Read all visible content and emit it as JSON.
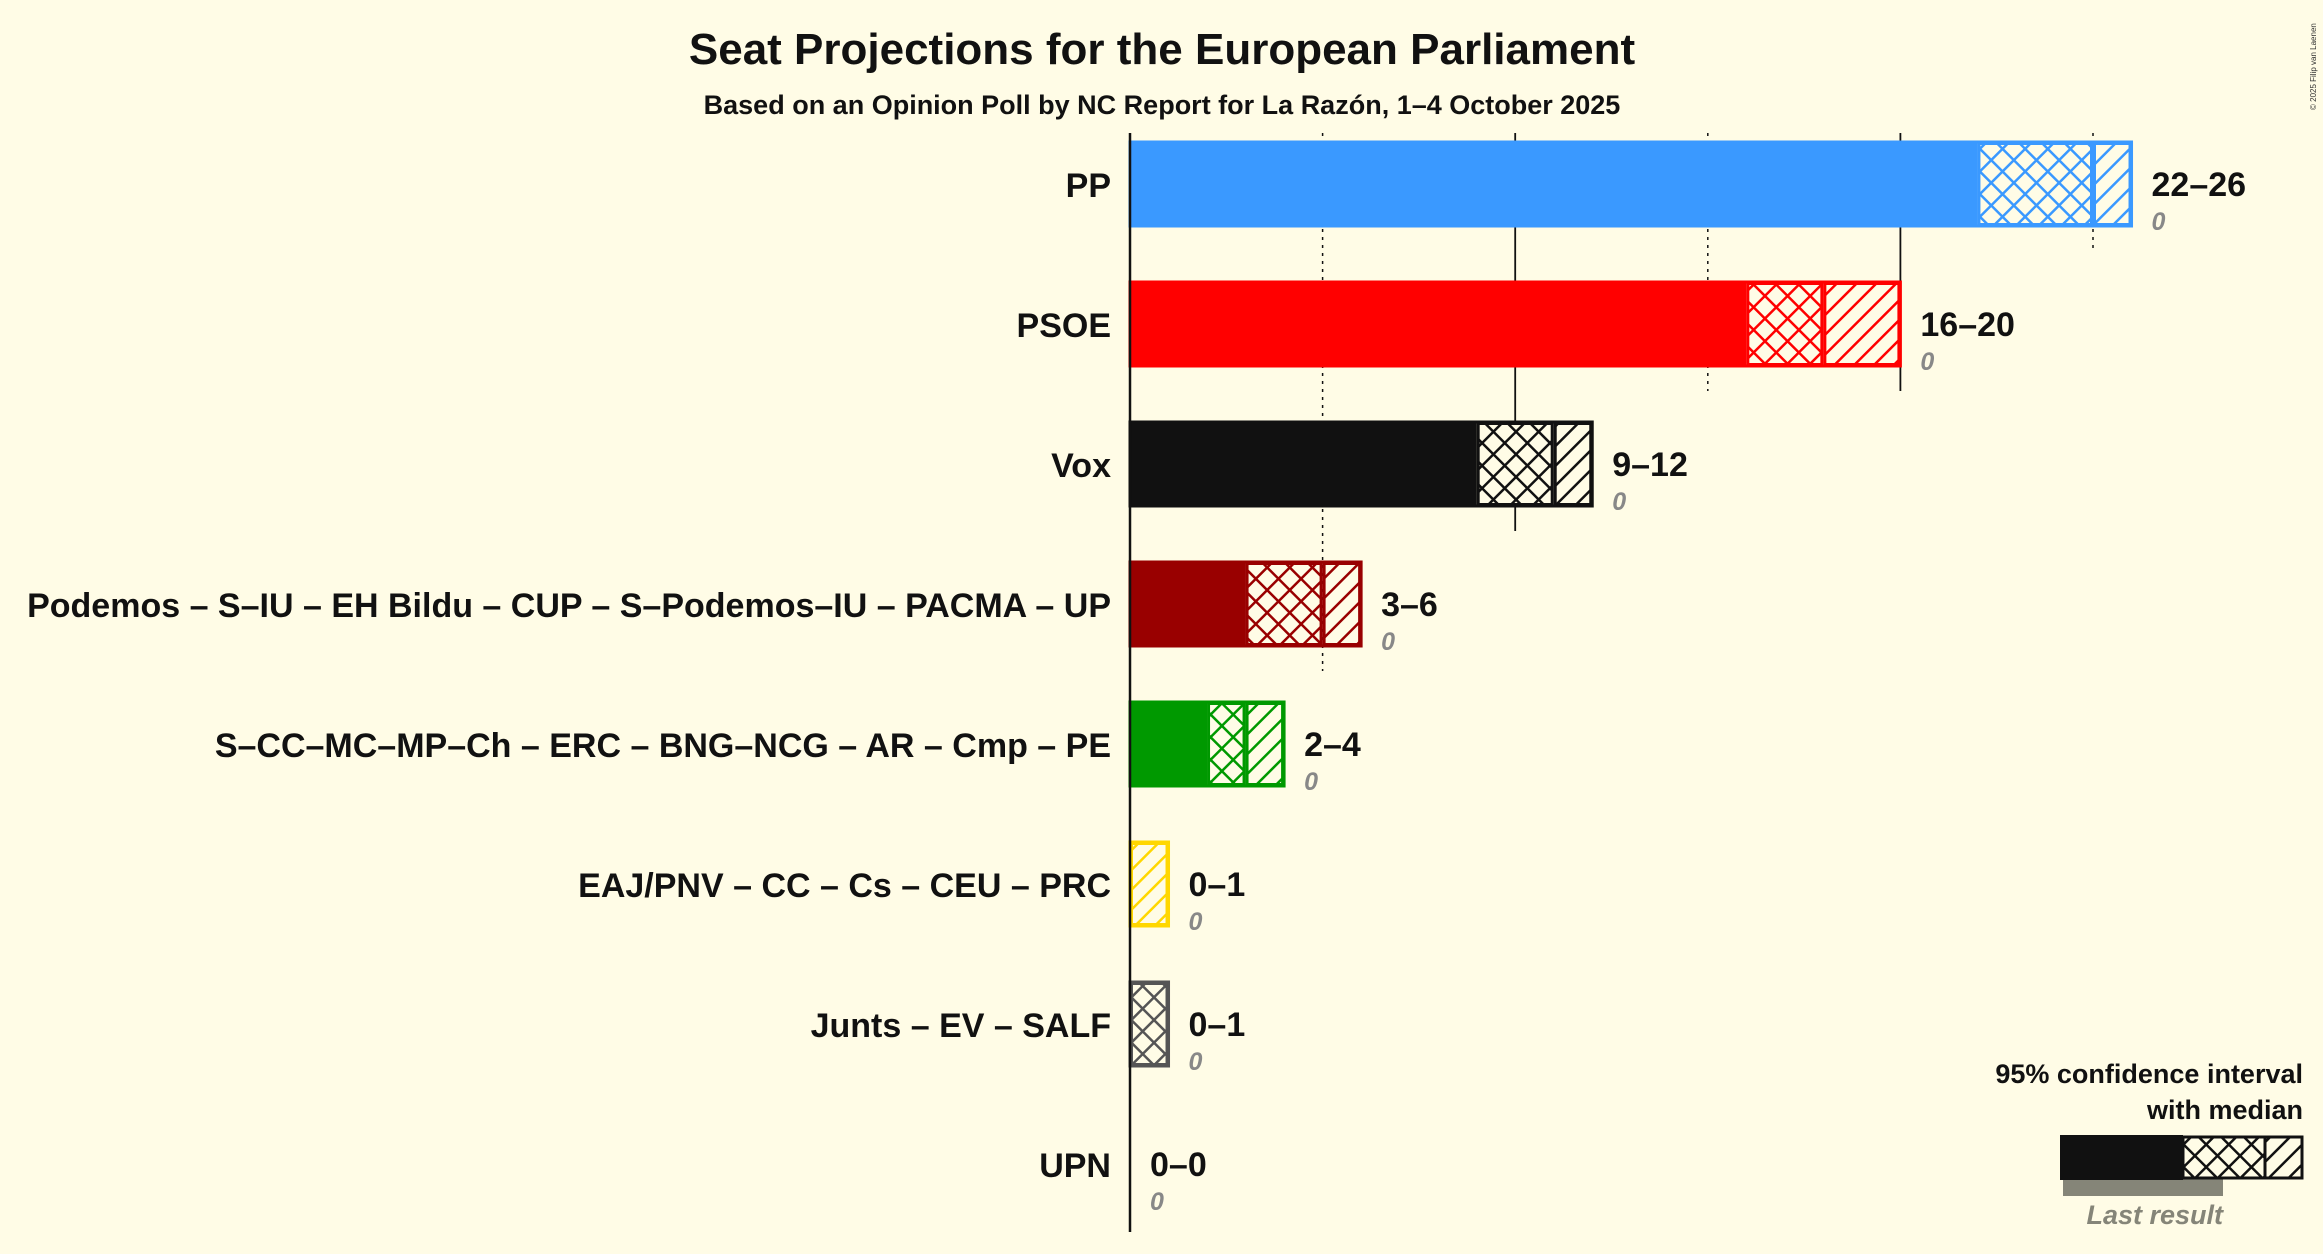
{
  "chart_data": {
    "type": "bar",
    "title": "Seat Projections for the European Parliament",
    "subtitle": "Based on an Opinion Poll by NC Report for La Razón, 1–4 October 2025",
    "copyright": "© 2025 Filip van Laenen",
    "xlim": [
      0,
      27
    ],
    "gridlines": {
      "solid": [
        0,
        10,
        20
      ],
      "dotted": [
        5,
        15,
        25
      ]
    },
    "series": [
      {
        "name": "PP",
        "low": 22,
        "median": 25,
        "high": 26,
        "range_label": "22–26",
        "last_result": 0,
        "last_label": "0",
        "color": "#3a99ff"
      },
      {
        "name": "PSOE",
        "low": 16,
        "median": 18,
        "high": 20,
        "range_label": "16–20",
        "last_result": 0,
        "last_label": "0",
        "color": "#ff0000"
      },
      {
        "name": "Vox",
        "low": 9,
        "median": 11,
        "high": 12,
        "range_label": "9–12",
        "last_result": 0,
        "last_label": "0",
        "color": "#111111"
      },
      {
        "name": "Podemos – S–IU – EH Bildu – CUP – S–Podemos–IU – PACMA – UP",
        "low": 3,
        "median": 5,
        "high": 6,
        "range_label": "3–6",
        "last_result": 0,
        "last_label": "0",
        "color": "#990000"
      },
      {
        "name": "S–CC–MC–MP–Ch – ERC – BNG–NCG – AR – Cmp – PE",
        "low": 2,
        "median": 3,
        "high": 4,
        "range_label": "2–4",
        "last_result": 0,
        "last_label": "0",
        "color": "#009900"
      },
      {
        "name": "EAJ/PNV – CC – Cs – CEU – PRC",
        "low": 0,
        "median": 0,
        "high": 1,
        "range_label": "0–1",
        "last_result": 0,
        "last_label": "0",
        "color": "#ffd700"
      },
      {
        "name": "Junts – EV – SALF",
        "low": 0,
        "median": 1,
        "high": 1,
        "range_label": "0–1",
        "last_result": 0,
        "last_label": "0",
        "color": "#555555"
      },
      {
        "name": "UPN",
        "low": 0,
        "median": 0,
        "high": 0,
        "range_label": "0–0",
        "last_result": 0,
        "last_label": "0",
        "color": "#0000ff"
      }
    ],
    "legend": {
      "line1": "95% confidence interval",
      "line2": "with median",
      "last_result": "Last result",
      "placement": "bottom-right"
    }
  }
}
